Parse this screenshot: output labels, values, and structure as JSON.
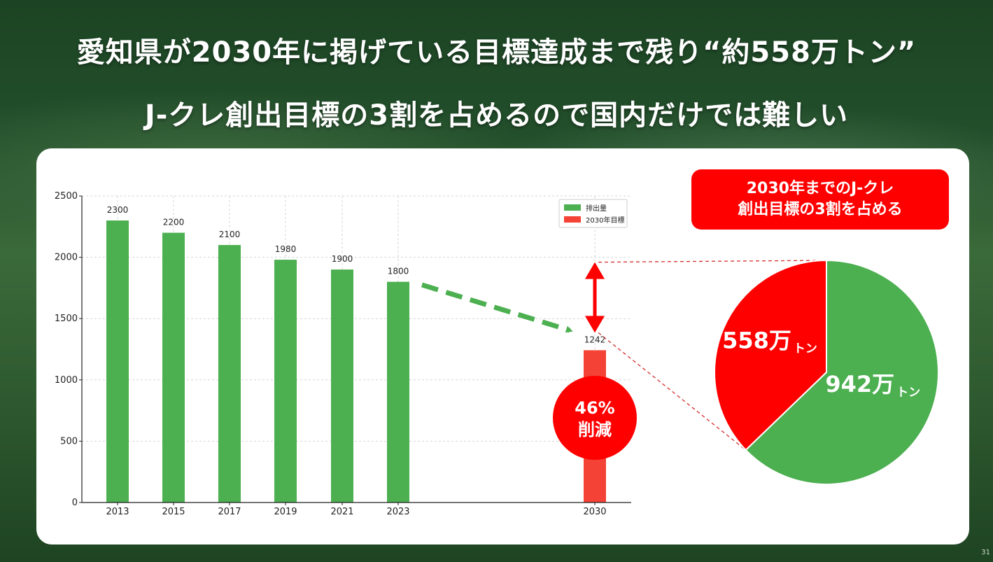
{
  "slide": {
    "title_line1": "愛知県が2030年に掲げている目標達成まで残り“約558万トン”",
    "title_line2": "J-クレ創出目標の3割を占めるので国内だけでは難しい",
    "page_number": "31"
  },
  "callout": {
    "line1": "2030年までのJ-クレ",
    "line2": "創出目標の3割を占める"
  },
  "reduction_badge": {
    "line1": "46%",
    "line2": "削減"
  },
  "chart_data": [
    {
      "type": "bar",
      "categories": [
        "2013",
        "2015",
        "2017",
        "2019",
        "2021",
        "2023",
        "2030"
      ],
      "series": [
        {
          "name": "排出量",
          "values": [
            2300,
            2200,
            2100,
            1980,
            1900,
            1800,
            null
          ],
          "color": "#4caf50"
        },
        {
          "name": "2030年目標",
          "values": [
            null,
            null,
            null,
            null,
            null,
            null,
            1242
          ],
          "color": "#f44336"
        }
      ],
      "data_labels": [
        "2300",
        "2200",
        "2100",
        "1980",
        "1900",
        "1800",
        "1242"
      ],
      "yticks": [
        0,
        500,
        1000,
        1500,
        2000,
        2500
      ],
      "ylim": [
        0,
        2500
      ],
      "grid": true,
      "legend": "top-right",
      "arrow_top_value": 1960
    },
    {
      "type": "pie",
      "slices": [
        {
          "value": 558,
          "label_value": "558万",
          "label_unit": "トン",
          "color": "#ff0000"
        },
        {
          "value": 942,
          "label_value": "942万",
          "label_unit": "トン",
          "color": "#4caf50"
        }
      ]
    }
  ]
}
